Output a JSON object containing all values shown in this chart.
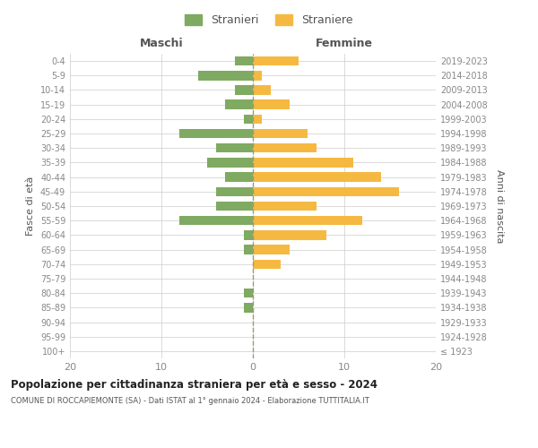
{
  "age_groups": [
    "100+",
    "95-99",
    "90-94",
    "85-89",
    "80-84",
    "75-79",
    "70-74",
    "65-69",
    "60-64",
    "55-59",
    "50-54",
    "45-49",
    "40-44",
    "35-39",
    "30-34",
    "25-29",
    "20-24",
    "15-19",
    "10-14",
    "5-9",
    "0-4"
  ],
  "birth_years": [
    "≤ 1923",
    "1924-1928",
    "1929-1933",
    "1934-1938",
    "1939-1943",
    "1944-1948",
    "1949-1953",
    "1954-1958",
    "1959-1963",
    "1964-1968",
    "1969-1973",
    "1974-1978",
    "1979-1983",
    "1984-1988",
    "1989-1993",
    "1994-1998",
    "1999-2003",
    "2004-2008",
    "2009-2013",
    "2014-2018",
    "2019-2023"
  ],
  "stranieri": [
    0,
    0,
    0,
    1,
    1,
    0,
    0,
    1,
    1,
    8,
    4,
    4,
    3,
    5,
    4,
    8,
    1,
    3,
    2,
    6,
    2
  ],
  "straniere": [
    0,
    0,
    0,
    0,
    0,
    0,
    3,
    4,
    8,
    12,
    7,
    16,
    14,
    11,
    7,
    6,
    1,
    4,
    2,
    1,
    5
  ],
  "male_color": "#7faa61",
  "female_color": "#f5b942",
  "xlim": 20,
  "title": "Popolazione per cittadinanza straniera per età e sesso - 2024",
  "subtitle": "COMUNE DI ROCCAPIEMONTE (SA) - Dati ISTAT al 1° gennaio 2024 - Elaborazione TUTTITALIA.IT",
  "ylabel_left": "Fasce di età",
  "ylabel_right": "Anni di nascita",
  "legend_stranieri": "Stranieri",
  "legend_straniere": "Straniere",
  "header_maschi": "Maschi",
  "header_femmine": "Femmine",
  "bg_color": "#ffffff",
  "grid_color": "#cccccc",
  "axis_label_color": "#555555",
  "tick_label_color": "#888888"
}
